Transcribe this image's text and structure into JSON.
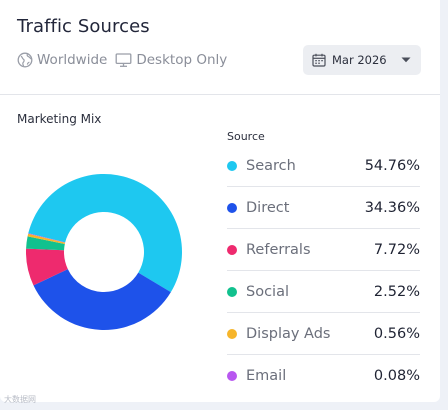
{
  "header": {
    "title": "Traffic Sources",
    "region": "Worldwide",
    "device": "Desktop Only",
    "date": "Mar 2026"
  },
  "section": {
    "label": "Marketing Mix",
    "legend_header": "Source"
  },
  "chart_data": {
    "type": "pie",
    "donut": true,
    "title": "Marketing Mix",
    "legend_title": "Source",
    "legend_position": "right",
    "categories": [
      "Search",
      "Direct",
      "Referrals",
      "Social",
      "Display Ads",
      "Email"
    ],
    "values": [
      54.76,
      34.36,
      7.72,
      2.52,
      0.56,
      0.08
    ],
    "value_labels": [
      "54.76%",
      "34.36%",
      "7.72%",
      "2.52%",
      "0.56%",
      "0.08%"
    ],
    "colors": [
      "#1ec8f0",
      "#1e52ea",
      "#ee2a6e",
      "#11c18e",
      "#f6b52b",
      "#b857f0"
    ]
  },
  "watermark": "大数据网"
}
